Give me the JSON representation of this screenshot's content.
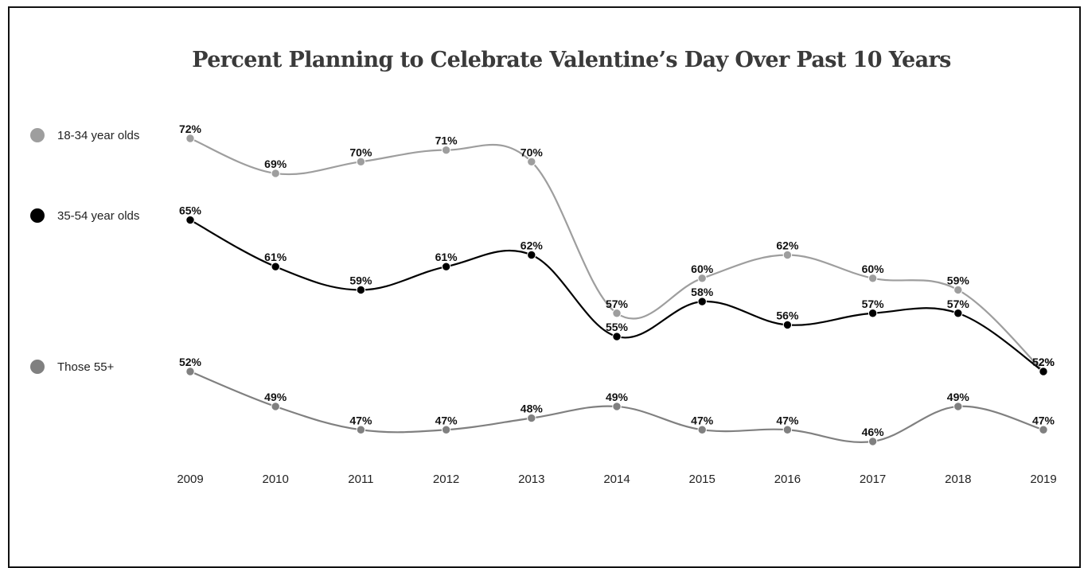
{
  "chart_data": {
    "type": "line",
    "title": "Percent Planning to Celebrate Valentine’s Day Over Past 10 Years",
    "categories": [
      "2009",
      "2010",
      "2011",
      "2012",
      "2013",
      "2014",
      "2015",
      "2016",
      "2017",
      "2018",
      "2019"
    ],
    "series": [
      {
        "name": "18-34 year olds",
        "color": "#9e9e9e",
        "values": [
          72,
          69,
          70,
          71,
          70,
          57,
          60,
          62,
          60,
          59,
          52
        ],
        "labels": [
          "72%",
          "69%",
          "70%",
          "71%",
          "70%",
          "57%",
          "60%",
          "62%",
          "60%",
          "59%",
          "52%"
        ]
      },
      {
        "name": "35-54 year olds",
        "color": "#000000",
        "values": [
          65,
          61,
          59,
          61,
          62,
          55,
          58,
          56,
          57,
          57,
          52
        ],
        "labels": [
          "65%",
          "61%",
          "59%",
          "61%",
          "62%",
          "55%",
          "58%",
          "56%",
          "57%",
          "57%",
          "52%"
        ]
      },
      {
        "name": "Those 55+",
        "color": "#808080",
        "values": [
          52,
          49,
          47,
          47,
          48,
          49,
          47,
          47,
          46,
          49,
          47
        ],
        "labels": [
          "52%",
          "49%",
          "47%",
          "47%",
          "48%",
          "49%",
          "47%",
          "47%",
          "46%",
          "49%",
          "47%"
        ]
      }
    ],
    "legend_position": "left",
    "grid": false
  }
}
